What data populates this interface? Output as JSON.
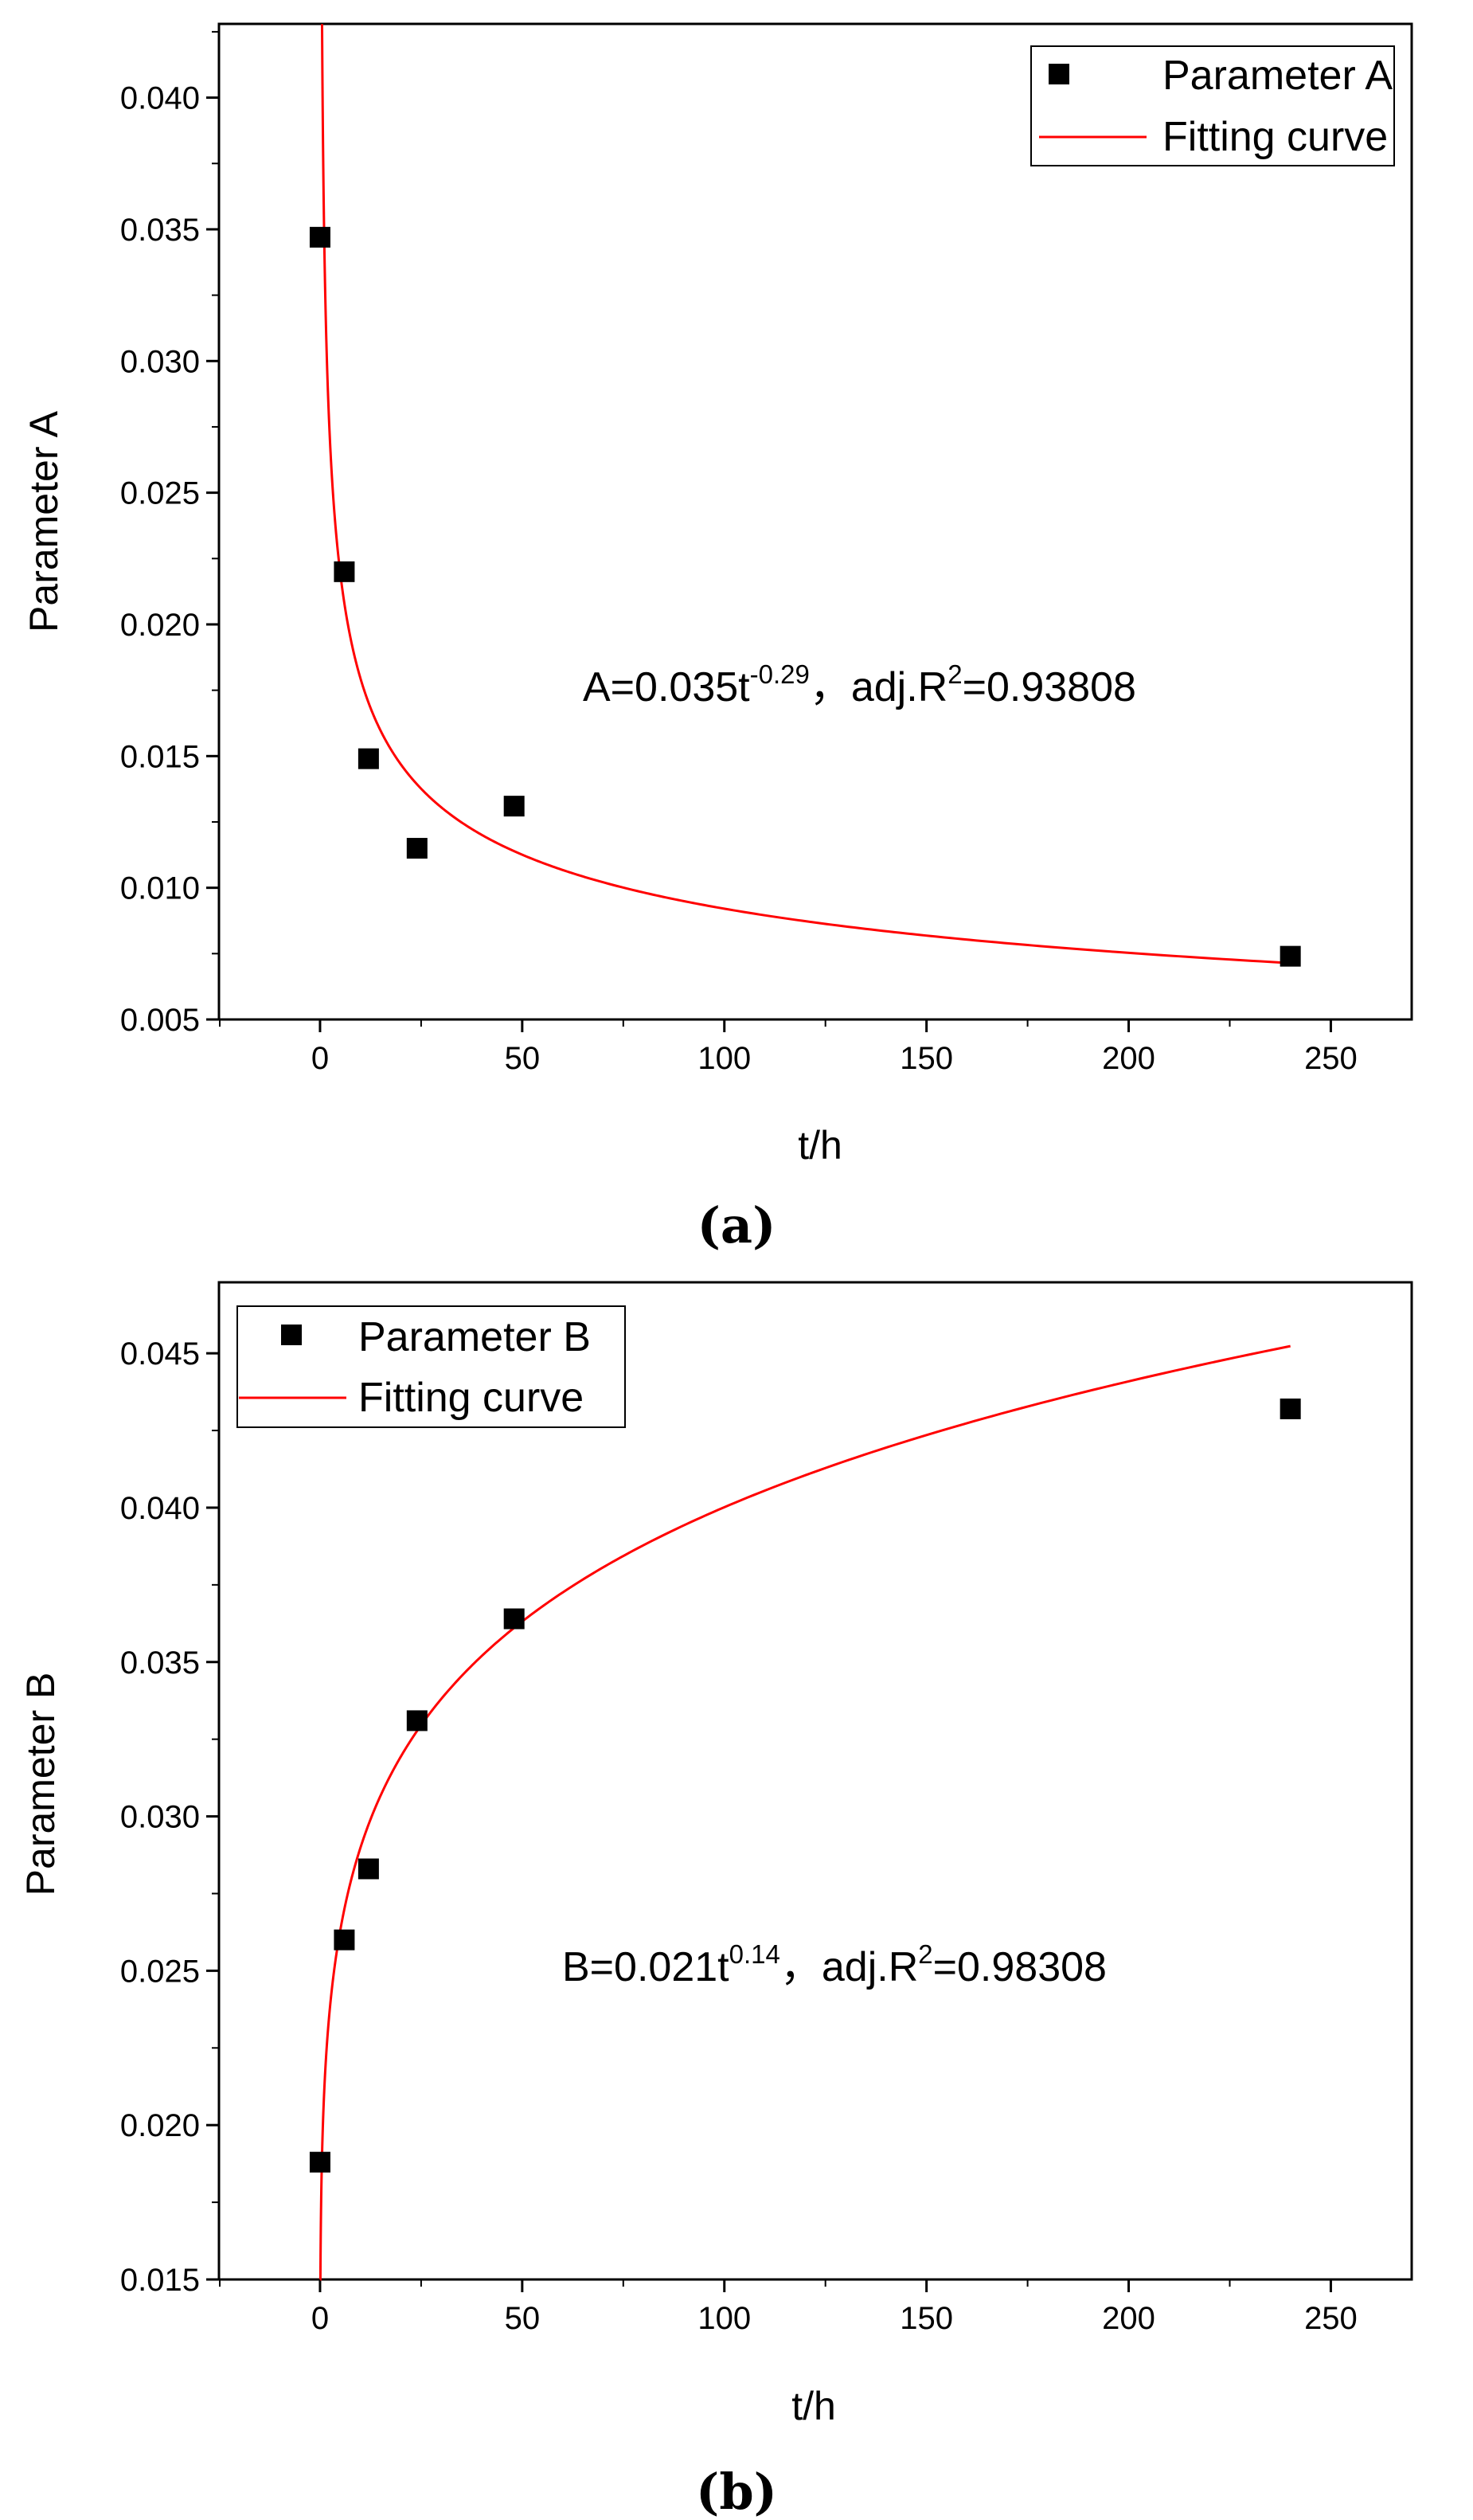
{
  "chart_data": [
    {
      "type": "scatter",
      "subfigure_label": "(a)",
      "xlabel": "t/h",
      "ylabel": "Parameter A",
      "xlim": [
        -25,
        270
      ],
      "ylim": [
        0.005,
        0.0428
      ],
      "xticks": [
        0,
        50,
        100,
        150,
        200,
        250
      ],
      "yticks": [
        0.005,
        0.01,
        0.015,
        0.02,
        0.025,
        0.03,
        0.035,
        0.04
      ],
      "ytick_labels": [
        "0.005",
        "0.010",
        "0.015",
        "0.020",
        "0.025",
        "0.030",
        "0.035",
        "0.040"
      ],
      "series": [
        {
          "name": "Parameter A",
          "kind": "points",
          "x": [
            0,
            6,
            12,
            24,
            48,
            240
          ],
          "y": [
            0.0347,
            0.022,
            0.0149,
            0.0115,
            0.0131,
            0.0074
          ]
        },
        {
          "name": "Fitting curve",
          "kind": "fit",
          "color": "#ff0000",
          "coef": 0.035,
          "exponent": -0.29,
          "x_range": [
            0.5,
            240
          ]
        }
      ],
      "legend_position": "top-right",
      "annotation": {
        "prefix": "A=0.035t",
        "exponent": "-0.29",
        "middle": "，adj.R",
        "r2_exp": "2",
        "suffix": "=0.93808"
      }
    },
    {
      "type": "scatter",
      "subfigure_label": "(b)",
      "xlabel": "t/h",
      "ylabel": "Parameter B",
      "xlim": [
        -25,
        270
      ],
      "ylim": [
        0.015,
        0.0473
      ],
      "xticks": [
        0,
        50,
        100,
        150,
        200,
        250
      ],
      "yticks": [
        0.015,
        0.02,
        0.025,
        0.03,
        0.035,
        0.04,
        0.045
      ],
      "ytick_labels": [
        "0.015",
        "0.020",
        "0.025",
        "0.030",
        "0.035",
        "0.040",
        "0.045"
      ],
      "series": [
        {
          "name": "Parameter B",
          "kind": "points",
          "x": [
            0,
            6,
            12,
            24,
            48,
            240
          ],
          "y": [
            0.0188,
            0.026,
            0.0283,
            0.0331,
            0.0364,
            0.0432
          ]
        },
        {
          "name": "Fitting curve",
          "kind": "fit",
          "color": "#ff0000",
          "coef": 0.021,
          "exponent": 0.14,
          "x_range": [
            0.05,
            240
          ]
        }
      ],
      "legend_position": "top-left",
      "annotation": {
        "prefix": "B=0.021t",
        "exponent": "0.14",
        "middle": "，adj.R",
        "r2_exp": "2",
        "suffix": "=0.98308"
      }
    }
  ]
}
